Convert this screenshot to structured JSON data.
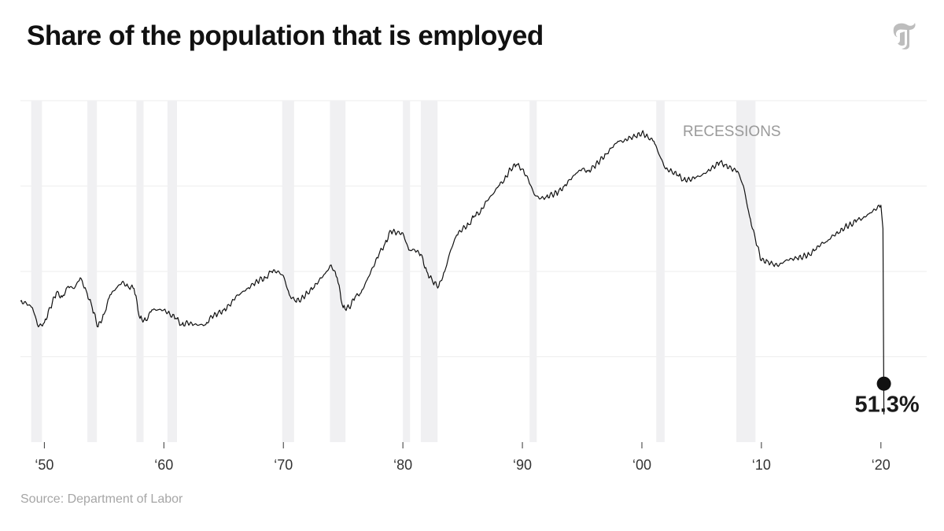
{
  "header": {
    "title": "Share of the population that is employed",
    "logo": "nyt-t-logo-icon"
  },
  "source": "Source: Department of Labor",
  "chart_data": {
    "type": "line",
    "title": "Share of the population that is employed",
    "xlabel": "",
    "ylabel": "",
    "xlim": [
      1948,
      2021
    ],
    "ylim": [
      50,
      66
    ],
    "grid": true,
    "x_tick_labels": [
      {
        "year": 1950,
        "label": "‘50"
      },
      {
        "year": 1960,
        "label": "‘60"
      },
      {
        "year": 1970,
        "label": "‘70"
      },
      {
        "year": 1980,
        "label": "‘80"
      },
      {
        "year": 1990,
        "label": "‘90"
      },
      {
        "year": 2000,
        "label": "‘00"
      },
      {
        "year": 2010,
        "label": "‘10"
      },
      {
        "year": 2020,
        "label": "‘20"
      }
    ],
    "recessions_label": "RECESSIONS",
    "recessions": [
      [
        1948.9,
        1949.8
      ],
      [
        1953.6,
        1954.4
      ],
      [
        1957.7,
        1958.3
      ],
      [
        1960.3,
        1961.1
      ],
      [
        1969.9,
        1970.9
      ],
      [
        1973.9,
        1975.2
      ],
      [
        1980.0,
        1980.6
      ],
      [
        1981.5,
        1982.9
      ],
      [
        1990.6,
        1991.2
      ],
      [
        2001.2,
        2001.9
      ],
      [
        2007.9,
        2009.5
      ]
    ],
    "series": [
      {
        "values": [
          [
            1948.0,
            56.6
          ],
          [
            1948.5,
            56.5
          ],
          [
            1949.0,
            56.3
          ],
          [
            1949.5,
            55.4
          ],
          [
            1950.0,
            55.6
          ],
          [
            1950.5,
            56.3
          ],
          [
            1951.0,
            57.0
          ],
          [
            1951.5,
            56.8
          ],
          [
            1952.0,
            57.3
          ],
          [
            1952.5,
            57.2
          ],
          [
            1953.0,
            57.7
          ],
          [
            1953.5,
            57.1
          ],
          [
            1954.0,
            56.3
          ],
          [
            1954.5,
            55.4
          ],
          [
            1955.0,
            56.0
          ],
          [
            1955.5,
            56.9
          ],
          [
            1956.0,
            57.2
          ],
          [
            1956.5,
            57.5
          ],
          [
            1957.0,
            57.3
          ],
          [
            1957.5,
            57.2
          ],
          [
            1958.0,
            55.8
          ],
          [
            1958.5,
            55.7
          ],
          [
            1959.0,
            56.2
          ],
          [
            1959.5,
            56.2
          ],
          [
            1960.0,
            56.2
          ],
          [
            1960.5,
            56.0
          ],
          [
            1961.0,
            55.8
          ],
          [
            1961.5,
            55.5
          ],
          [
            1962.0,
            55.6
          ],
          [
            1962.5,
            55.5
          ],
          [
            1963.0,
            55.5
          ],
          [
            1963.5,
            55.5
          ],
          [
            1964.0,
            55.9
          ],
          [
            1964.5,
            56.0
          ],
          [
            1965.0,
            56.2
          ],
          [
            1965.5,
            56.4
          ],
          [
            1966.0,
            56.8
          ],
          [
            1966.5,
            57.0
          ],
          [
            1967.0,
            57.2
          ],
          [
            1967.5,
            57.4
          ],
          [
            1968.0,
            57.6
          ],
          [
            1968.5,
            57.7
          ],
          [
            1969.0,
            58.0
          ],
          [
            1969.5,
            58.0
          ],
          [
            1970.0,
            57.8
          ],
          [
            1970.5,
            56.9
          ],
          [
            1971.0,
            56.6
          ],
          [
            1971.5,
            56.7
          ],
          [
            1972.0,
            57.0
          ],
          [
            1972.5,
            57.2
          ],
          [
            1973.0,
            57.6
          ],
          [
            1973.5,
            57.9
          ],
          [
            1974.0,
            58.3
          ],
          [
            1974.5,
            57.7
          ],
          [
            1975.0,
            56.3
          ],
          [
            1975.5,
            56.3
          ],
          [
            1976.0,
            56.8
          ],
          [
            1976.5,
            57.0
          ],
          [
            1977.0,
            57.6
          ],
          [
            1977.5,
            58.2
          ],
          [
            1978.0,
            58.8
          ],
          [
            1978.5,
            59.3
          ],
          [
            1979.0,
            59.9
          ],
          [
            1979.5,
            59.8
          ],
          [
            1980.0,
            59.8
          ],
          [
            1980.5,
            59.0
          ],
          [
            1981.0,
            59.0
          ],
          [
            1981.5,
            58.8
          ],
          [
            1982.0,
            58.0
          ],
          [
            1982.5,
            57.5
          ],
          [
            1983.0,
            57.3
          ],
          [
            1983.5,
            58.0
          ],
          [
            1984.0,
            59.0
          ],
          [
            1984.5,
            59.7
          ],
          [
            1985.0,
            60.0
          ],
          [
            1985.5,
            60.2
          ],
          [
            1986.0,
            60.6
          ],
          [
            1986.5,
            60.8
          ],
          [
            1987.0,
            61.3
          ],
          [
            1987.5,
            61.6
          ],
          [
            1988.0,
            62.0
          ],
          [
            1988.5,
            62.3
          ],
          [
            1989.0,
            62.8
          ],
          [
            1989.5,
            63.0
          ],
          [
            1990.0,
            62.8
          ],
          [
            1990.5,
            62.3
          ],
          [
            1991.0,
            61.6
          ],
          [
            1991.5,
            61.4
          ],
          [
            1992.0,
            61.5
          ],
          [
            1992.5,
            61.6
          ],
          [
            1993.0,
            61.7
          ],
          [
            1993.5,
            62.0
          ],
          [
            1994.0,
            62.3
          ],
          [
            1994.5,
            62.6
          ],
          [
            1995.0,
            62.8
          ],
          [
            1995.5,
            62.7
          ],
          [
            1996.0,
            62.9
          ],
          [
            1996.5,
            63.2
          ],
          [
            1997.0,
            63.5
          ],
          [
            1997.5,
            63.8
          ],
          [
            1998.0,
            64.1
          ],
          [
            1998.5,
            64.1
          ],
          [
            1999.0,
            64.3
          ],
          [
            1999.5,
            64.3
          ],
          [
            2000.0,
            64.5
          ],
          [
            2000.5,
            64.3
          ],
          [
            2001.0,
            64.1
          ],
          [
            2001.5,
            63.4
          ],
          [
            2002.0,
            62.8
          ],
          [
            2002.5,
            62.7
          ],
          [
            2003.0,
            62.5
          ],
          [
            2003.5,
            62.3
          ],
          [
            2004.0,
            62.3
          ],
          [
            2004.5,
            62.4
          ],
          [
            2005.0,
            62.5
          ],
          [
            2005.5,
            62.7
          ],
          [
            2006.0,
            62.9
          ],
          [
            2006.5,
            63.1
          ],
          [
            2007.0,
            63.0
          ],
          [
            2007.5,
            62.8
          ],
          [
            2008.0,
            62.7
          ],
          [
            2008.5,
            62.0
          ],
          [
            2009.0,
            60.6
          ],
          [
            2009.5,
            59.5
          ],
          [
            2010.0,
            58.5
          ],
          [
            2010.5,
            58.5
          ],
          [
            2011.0,
            58.3
          ],
          [
            2011.5,
            58.3
          ],
          [
            2012.0,
            58.5
          ],
          [
            2012.5,
            58.6
          ],
          [
            2013.0,
            58.6
          ],
          [
            2013.5,
            58.7
          ],
          [
            2014.0,
            58.8
          ],
          [
            2014.5,
            59.0
          ],
          [
            2015.0,
            59.3
          ],
          [
            2015.5,
            59.4
          ],
          [
            2016.0,
            59.7
          ],
          [
            2016.5,
            59.8
          ],
          [
            2017.0,
            60.1
          ],
          [
            2017.5,
            60.2
          ],
          [
            2018.0,
            60.4
          ],
          [
            2018.5,
            60.5
          ],
          [
            2019.0,
            60.7
          ],
          [
            2019.5,
            60.9
          ],
          [
            2020.0,
            61.1
          ],
          [
            2020.17,
            60.0
          ],
          [
            2020.25,
            51.3
          ]
        ]
      }
    ],
    "end_label": "51.3%"
  }
}
